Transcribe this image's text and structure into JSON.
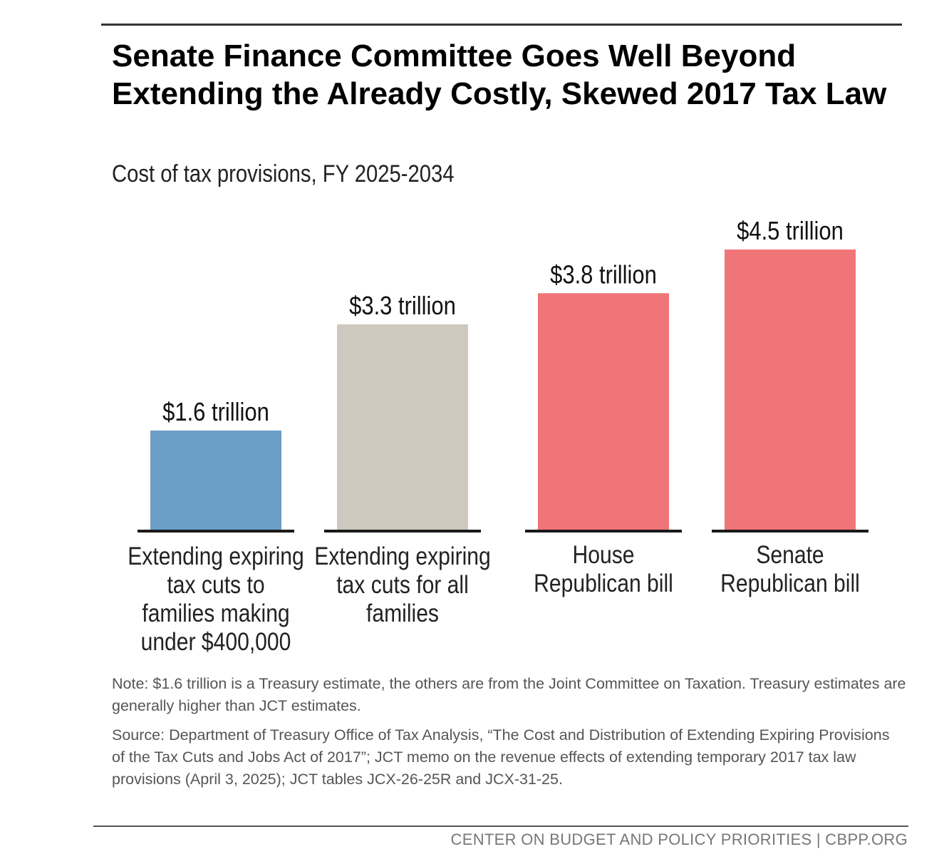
{
  "header": {
    "title": "Senate Finance Committee Goes Well Beyond Extending the Already Costly, Skewed 2017 Tax Law",
    "subtitle": "Cost of tax provisions, FY 2025-2034"
  },
  "chart_data": {
    "type": "bar",
    "title": "Senate Finance Committee Goes Well Beyond Extending the Already Costly, Skewed 2017 Tax Law",
    "subtitle": "Cost of tax provisions, FY 2025-2034",
    "xlabel": "",
    "ylabel": "",
    "units": "trillions of dollars",
    "ylim": [
      0,
      4.5
    ],
    "grid": false,
    "legend": "none",
    "categories": [
      "Extending expiring tax cuts to families making under $400,000",
      "Extending expiring tax cuts for all families",
      "House Republican bill",
      "Senate Republican bill"
    ],
    "category_lines": [
      [
        "Extending expiring",
        "tax cuts to",
        "families making",
        "under $400,000"
      ],
      [
        "Extending expiring",
        "tax cuts for all",
        "families"
      ],
      [
        "House",
        "Republican bill"
      ],
      [
        "Senate",
        "Republican bill"
      ]
    ],
    "values": [
      1.6,
      3.3,
      3.8,
      4.5
    ],
    "value_labels": [
      "$1.6 trillion",
      "$3.3 trillion",
      "$3.8 trillion",
      "$4.5 trillion"
    ],
    "colors": [
      "#6a9ec7",
      "#cec8bf",
      "#f07579",
      "#f07579"
    ],
    "baseline_color": "#1a1a1a"
  },
  "notes": {
    "note": "Note: $1.6 trillion is a Treasury estimate, the others are from the Joint Committee on Taxation. Treasury estimates are generally higher than JCT estimates.",
    "source": "Source: Department of Treasury Office of Tax Analysis, “The Cost and Distribution of Extending Expiring Provisions of the Tax Cuts and Jobs Act of 2017”; JCT memo on the revenue effects of extending temporary 2017 tax law provisions (April 3, 2025); JCT tables JCX-26-25R and JCX-31-25."
  },
  "footer": {
    "credit": "CENTER ON BUDGET AND POLICY PRIORITIES | CBPP.ORG"
  }
}
